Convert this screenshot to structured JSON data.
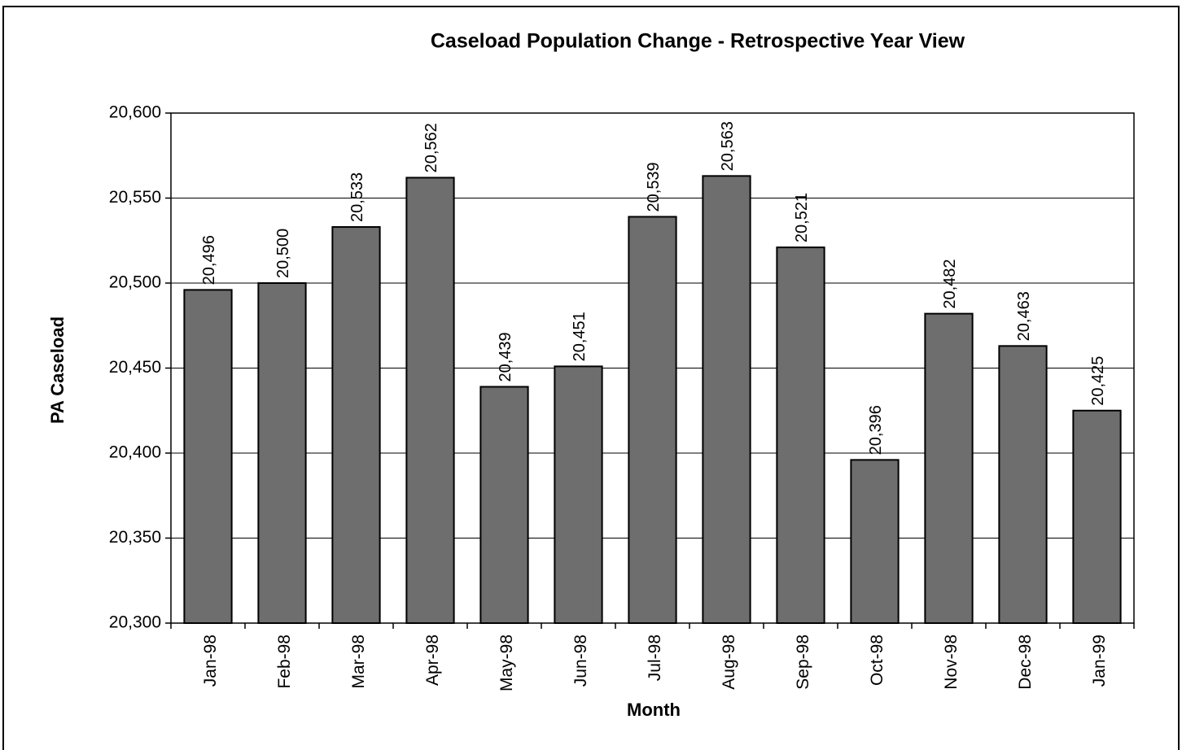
{
  "chart_data": {
    "type": "bar",
    "title": "Caseload Population Change - Retrospective Year View",
    "y_label": "PA Caseload",
    "x_label": "Month",
    "categories": [
      "Jan-98",
      "Feb-98",
      "Mar-98",
      "Apr-98",
      "May-98",
      "Jun-98",
      "Jul-98",
      "Aug-98",
      "Sep-98",
      "Oct-98",
      "Nov-98",
      "Dec-98",
      "Jan-99"
    ],
    "values": [
      20496,
      20500,
      20533,
      20562,
      20439,
      20451,
      20539,
      20563,
      20521,
      20396,
      20482,
      20463,
      20425
    ],
    "value_labels": [
      "20,496",
      "20,500",
      "20,533",
      "20,562",
      "20,439",
      "20,451",
      "20,539",
      "20,563",
      "20,521",
      "20,396",
      "20,482",
      "20,463",
      "20,425"
    ],
    "color": "#6e6e6e",
    "ylim": [
      20300,
      20600
    ],
    "yticks": [
      {
        "value": 20300,
        "label": "20,300"
      },
      {
        "value": 20350,
        "label": "20,350"
      },
      {
        "value": 20400,
        "label": "20,400"
      },
      {
        "value": 20450,
        "label": "20,450"
      },
      {
        "value": 20500,
        "label": "20,500"
      },
      {
        "value": 20550,
        "label": "20,550"
      },
      {
        "value": 20600,
        "label": "20,600"
      }
    ],
    "grid": true
  }
}
